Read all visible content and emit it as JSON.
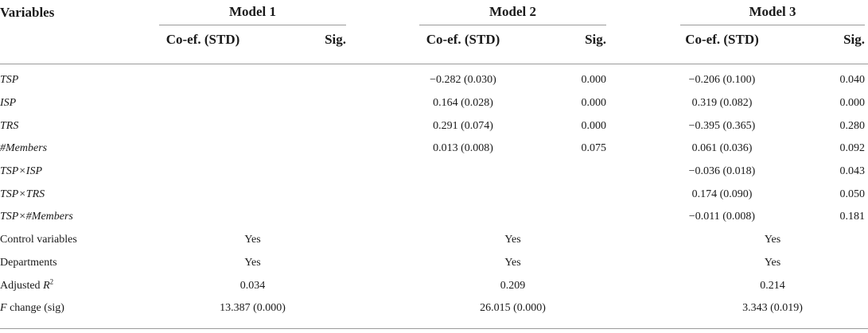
{
  "header": {
    "variables": "Variables",
    "models": [
      {
        "name": "Model 1",
        "coef_header": "Co-ef. (STD)",
        "sig_header": "Sig."
      },
      {
        "name": "Model 2",
        "coef_header": "Co-ef. (STD)",
        "sig_header": "Sig."
      },
      {
        "name": "Model 3",
        "coef_header": "Co-ef. (STD)",
        "sig_header": "Sig."
      }
    ]
  },
  "table": {
    "rows": [
      {
        "label": [
          {
            "text": "TSP",
            "italic": true
          }
        ],
        "values": [
          null,
          [
            "−0.282 (0.030)",
            "0.000"
          ],
          [
            "−0.206 (0.100)",
            "0.040"
          ]
        ]
      },
      {
        "label": [
          {
            "text": "ISP",
            "italic": true
          }
        ],
        "values": [
          null,
          [
            "0.164 (0.028)",
            "0.000"
          ],
          [
            "0.319 (0.082)",
            "0.000"
          ]
        ]
      },
      {
        "label": [
          {
            "text": "TRS",
            "italic": true
          }
        ],
        "values": [
          null,
          [
            "0.291 (0.074)",
            "0.000"
          ],
          [
            "−0.395 (0.365)",
            "0.280"
          ]
        ]
      },
      {
        "label": [
          {
            "text": "#Members",
            "italic": true
          }
        ],
        "values": [
          null,
          [
            "0.013 (0.008)",
            "0.075"
          ],
          [
            "0.061 (0.036)",
            "0.092"
          ]
        ]
      },
      {
        "label": [
          {
            "text": "TSP×ISP",
            "italic": true
          }
        ],
        "values": [
          null,
          null,
          [
            "−0.036 (0.018)",
            "0.043"
          ]
        ]
      },
      {
        "label": [
          {
            "text": "TSP×TRS",
            "italic": true
          }
        ],
        "values": [
          null,
          null,
          [
            "0.174 (0.090)",
            "0.050"
          ]
        ]
      },
      {
        "label": [
          {
            "text": "TSP×#Members",
            "italic": true
          }
        ],
        "values": [
          null,
          null,
          [
            "−0.011 (0.008)",
            "0.181"
          ]
        ]
      },
      {
        "label": [
          {
            "text": "Control variables"
          }
        ],
        "merged": [
          "Yes",
          "Yes",
          "Yes"
        ]
      },
      {
        "label": [
          {
            "text": "Departments"
          }
        ],
        "merged": [
          "Yes",
          "Yes",
          "Yes"
        ]
      },
      {
        "label": [
          {
            "text": "Adjusted "
          },
          {
            "text": "R",
            "italic": true
          },
          {
            "text": "2",
            "sup": true
          }
        ],
        "merged": [
          "0.034",
          "0.209",
          "0.214"
        ]
      },
      {
        "label": [
          {
            "text": "F",
            "italic": true
          },
          {
            "text": " change (sig)"
          }
        ],
        "merged": [
          "13.387 (0.000)",
          "26.015 (0.000)",
          "3.343 (0.019)"
        ]
      }
    ]
  }
}
